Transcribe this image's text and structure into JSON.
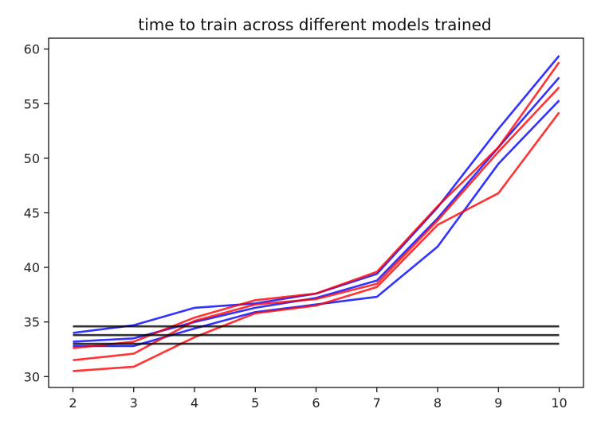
{
  "chart_data": {
    "type": "line",
    "title": "time to train across different models trained",
    "xlabel": "",
    "ylabel": "",
    "x": [
      2,
      3,
      4,
      5,
      6,
      7,
      8,
      9,
      10
    ],
    "xlim": [
      1.6,
      10.4
    ],
    "ylim": [
      29.0,
      61.0
    ],
    "xticks": [
      2,
      3,
      4,
      5,
      6,
      7,
      8,
      9,
      10
    ],
    "yticks": [
      30,
      35,
      40,
      45,
      50,
      55,
      60
    ],
    "grid": false,
    "legend": false,
    "series": [
      {
        "color": "#0000ff",
        "values": [
          34.0,
          34.7,
          36.3,
          36.7,
          37.6,
          39.4,
          45.5,
          52.7,
          59.4
        ]
      },
      {
        "color": "#0000ff",
        "values": [
          33.2,
          33.5,
          35.0,
          36.3,
          37.2,
          38.8,
          44.5,
          51.0,
          57.4
        ]
      },
      {
        "color": "#0000ff",
        "values": [
          32.8,
          32.8,
          34.4,
          35.9,
          36.6,
          37.3,
          41.9,
          49.5,
          55.3
        ]
      },
      {
        "color": "#ff0000",
        "values": [
          32.6,
          33.2,
          35.4,
          37.0,
          37.6,
          39.6,
          45.6,
          51.0,
          58.8
        ]
      },
      {
        "color": "#ff0000",
        "values": [
          31.5,
          32.1,
          35.1,
          36.6,
          37.1,
          38.5,
          44.3,
          50.6,
          56.5
        ]
      },
      {
        "color": "#ff0000",
        "values": [
          30.5,
          30.9,
          33.6,
          35.8,
          36.5,
          38.2,
          43.9,
          46.8,
          54.2
        ]
      },
      {
        "color": "#000000",
        "values": [
          34.6,
          34.6,
          34.6,
          34.6,
          34.6,
          34.6,
          34.6,
          34.6,
          34.6
        ]
      },
      {
        "color": "#000000",
        "values": [
          33.8,
          33.8,
          33.8,
          33.8,
          33.8,
          33.8,
          33.8,
          33.8,
          33.8
        ]
      },
      {
        "color": "#000000",
        "values": [
          33.0,
          33.0,
          33.0,
          33.0,
          33.0,
          33.0,
          33.0,
          33.0,
          33.0
        ]
      }
    ]
  }
}
